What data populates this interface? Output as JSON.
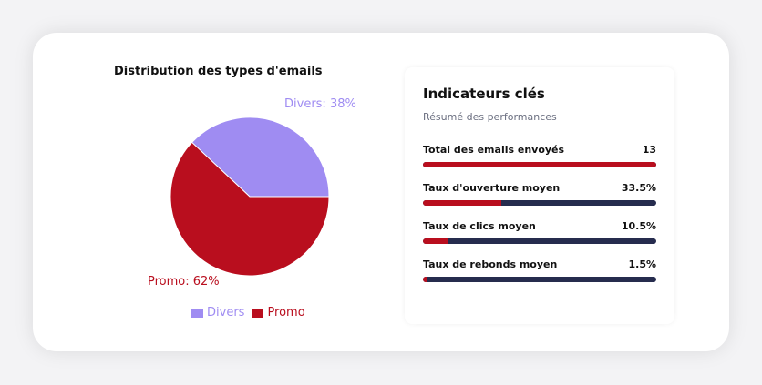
{
  "chart_data": {
    "type": "pie",
    "title": "Distribution des types d'emails",
    "categories": [
      "Divers",
      "Promo"
    ],
    "values": [
      38,
      62
    ],
    "labels": [
      "Divers: 38%",
      "Promo: 62%"
    ],
    "colors": [
      "#9f8cf2",
      "#b90e1e"
    ],
    "legend": "bottom"
  },
  "legend": {
    "items": [
      {
        "label": "Divers",
        "color": "#9f8cf2"
      },
      {
        "label": "Promo",
        "color": "#b90e1e"
      }
    ]
  },
  "kpi": {
    "title": "Indicateurs clés",
    "subtitle": "Résumé des performances",
    "metrics": [
      {
        "label": "Total des emails envoyés",
        "value": "13",
        "fill": 1.0
      },
      {
        "label": "Taux d'ouverture moyen",
        "value": "33.5%",
        "fill": 0.335
      },
      {
        "label": "Taux de clics moyen",
        "value": "10.5%",
        "fill": 0.105
      },
      {
        "label": "Taux de rebonds moyen",
        "value": "1.5%",
        "fill": 0.015
      }
    ],
    "track_color": "#262c4e",
    "fill_color": "#b90e1e"
  }
}
